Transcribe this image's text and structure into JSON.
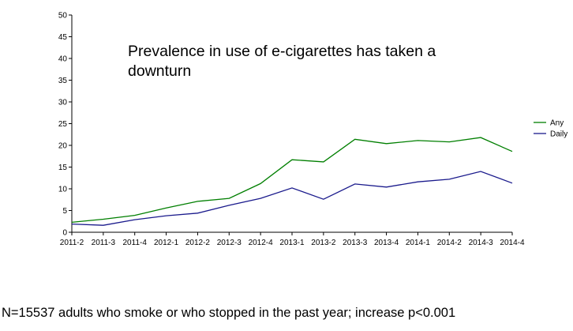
{
  "chart_data": {
    "type": "line",
    "title": "Prevalence in use of e-cigarettes has taken a downturn",
    "xlabel": "",
    "ylabel": "",
    "categories": [
      "2011-2",
      "2011-3",
      "2011-4",
      "2012-1",
      "2012-2",
      "2012-3",
      "2012-4",
      "2013-1",
      "2013-2",
      "2013-3",
      "2013-4",
      "2014-1",
      "2014-2",
      "2014-3",
      "2014-4"
    ],
    "ylim": [
      0,
      50
    ],
    "yticks": [
      0,
      5,
      10,
      15,
      20,
      25,
      30,
      35,
      40,
      45,
      50
    ],
    "grid": false,
    "legend_position": "right",
    "series": [
      {
        "name": "Any",
        "color": "#007f00",
        "values": [
          2.3,
          3.0,
          3.9,
          5.6,
          7.1,
          7.8,
          11.2,
          16.7,
          16.2,
          21.4,
          20.4,
          21.1,
          20.8,
          21.8,
          18.6
        ]
      },
      {
        "name": "Daily",
        "color": "#1a1a8c",
        "values": [
          1.9,
          1.6,
          2.9,
          3.8,
          4.4,
          6.2,
          7.8,
          10.2,
          7.6,
          11.1,
          10.4,
          11.6,
          12.2,
          14.0,
          11.3
        ]
      }
    ]
  },
  "footnote": "N=15537 adults who smoke or who stopped in the past year; increase p<0.001"
}
